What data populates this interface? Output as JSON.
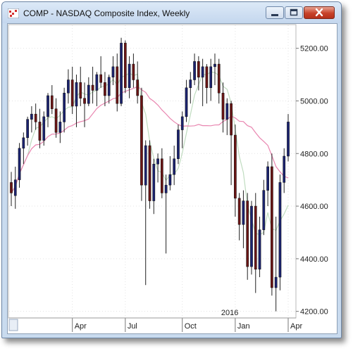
{
  "window": {
    "title": "COMP - NASDAQ Composite Index, Weekly",
    "buttons": [
      "minimize-icon",
      "maximize-icon",
      "close-icon"
    ]
  },
  "colors": {
    "up_body": "#1b2370",
    "down_body": "#6a1515",
    "wick": "#222222",
    "ma_fast": "#c0dcc0",
    "ma_slow": "#e986b0",
    "grid": "#e3e3e3"
  },
  "chart_data": {
    "type": "candlestick",
    "title": "",
    "xlabel": "",
    "ylabel": "",
    "y_axis_position": "right",
    "grid": true,
    "ylim": [
      4175,
      5290
    ],
    "y_ticks": [
      4200,
      4400,
      4600,
      4800,
      5000,
      5200
    ],
    "y_tick_labels": [
      "4200.00",
      "4400.00",
      "4600.00",
      "4800.00",
      "5000.00",
      "5200.00"
    ],
    "x_ticks": [
      {
        "index": 15,
        "label": "Apr"
      },
      {
        "index": 28,
        "label": "Jul"
      },
      {
        "index": 42,
        "label": "Oct"
      },
      {
        "index": 55,
        "label": "Jan"
      },
      {
        "index": 68,
        "label": "Apr"
      }
    ],
    "year_marker": {
      "index": 55,
      "label": "2016"
    },
    "series": [
      {
        "name": "",
        "type": "candlestick",
        "ohlc": [
          [
            4690,
            4730,
            4600,
            4650
          ],
          [
            4640,
            4750,
            4590,
            4700
          ],
          [
            4700,
            4840,
            4670,
            4820
          ],
          [
            4820,
            4880,
            4760,
            4860
          ],
          [
            4860,
            4940,
            4830,
            4930
          ],
          [
            4930,
            4980,
            4880,
            4950
          ],
          [
            4950,
            4990,
            4890,
            4920
          ],
          [
            4920,
            4970,
            4820,
            4850
          ],
          [
            4850,
            4960,
            4830,
            4940
          ],
          [
            4940,
            5030,
            4900,
            5020
          ],
          [
            5020,
            5060,
            4950,
            4970
          ],
          [
            4970,
            5010,
            4860,
            4880
          ],
          [
            4880,
            4960,
            4840,
            4920
          ],
          [
            4920,
            5050,
            4880,
            5030
          ],
          [
            5030,
            5120,
            4990,
            5080
          ],
          [
            5080,
            5130,
            4950,
            4980
          ],
          [
            4980,
            5100,
            4900,
            5070
          ],
          [
            5070,
            5130,
            4980,
            5010
          ],
          [
            5010,
            5070,
            4900,
            4990
          ],
          [
            4990,
            5090,
            4980,
            5060
          ],
          [
            5060,
            5130,
            4990,
            5040
          ],
          [
            5040,
            5110,
            4980,
            5100
          ],
          [
            5100,
            5170,
            5050,
            5070
          ],
          [
            5070,
            5110,
            4980,
            5020
          ],
          [
            5020,
            5100,
            4990,
            5090
          ],
          [
            5090,
            5170,
            5060,
            5130
          ],
          [
            5130,
            5180,
            4960,
            4990
          ],
          [
            4990,
            5240,
            4980,
            5220
          ],
          [
            5220,
            5230,
            5030,
            5050
          ],
          [
            5050,
            5170,
            5010,
            5140
          ],
          [
            5140,
            5180,
            5050,
            5080
          ],
          [
            5080,
            5150,
            4990,
            5020
          ],
          [
            5020,
            5050,
            4620,
            4680
          ],
          [
            4680,
            4850,
            4300,
            4830
          ],
          [
            4830,
            4850,
            4590,
            4620
          ],
          [
            4620,
            4780,
            4570,
            4760
          ],
          [
            4760,
            4800,
            4690,
            4780
          ],
          [
            4780,
            4820,
            4630,
            4650
          ],
          [
            4650,
            4720,
            4420,
            4680
          ],
          [
            4680,
            4790,
            4660,
            4720
          ],
          [
            4720,
            4830,
            4680,
            4780
          ],
          [
            4780,
            4910,
            4760,
            4890
          ],
          [
            4890,
            4960,
            4820,
            4940
          ],
          [
            4940,
            5080,
            4920,
            5050
          ],
          [
            5050,
            5110,
            4990,
            5080
          ],
          [
            5080,
            5180,
            5060,
            5150
          ],
          [
            5150,
            5170,
            5040,
            5090
          ],
          [
            5090,
            5160,
            4980,
            5130
          ],
          [
            5130,
            5140,
            4990,
            5050
          ],
          [
            5050,
            5160,
            5000,
            5130
          ],
          [
            5130,
            5180,
            5060,
            5140
          ],
          [
            5140,
            5160,
            4990,
            5030
          ],
          [
            5030,
            5070,
            4880,
            4930
          ],
          [
            4930,
            5010,
            4870,
            4990
          ],
          [
            4990,
            5000,
            4680,
            4870
          ],
          [
            4870,
            4910,
            4560,
            4630
          ],
          [
            4630,
            4650,
            4470,
            4530
          ],
          [
            4530,
            4660,
            4440,
            4620
          ],
          [
            4620,
            4650,
            4320,
            4370
          ],
          [
            4370,
            4620,
            4340,
            4600
          ],
          [
            4600,
            4650,
            4270,
            4360
          ],
          [
            4360,
            4560,
            4330,
            4510
          ],
          [
            4510,
            4700,
            4490,
            4660
          ],
          [
            4660,
            4770,
            4600,
            4750
          ],
          [
            4750,
            4800,
            4260,
            4290
          ],
          [
            4290,
            4560,
            4200,
            4330
          ],
          [
            4330,
            4720,
            4280,
            4690
          ],
          [
            4690,
            4820,
            4650,
            4790
          ],
          [
            4790,
            4950,
            4770,
            4920
          ]
        ]
      },
      {
        "name": "",
        "type": "line",
        "period": 5,
        "color": "ma_fast"
      },
      {
        "name": "",
        "type": "line",
        "period": 20,
        "color": "ma_slow"
      }
    ]
  }
}
